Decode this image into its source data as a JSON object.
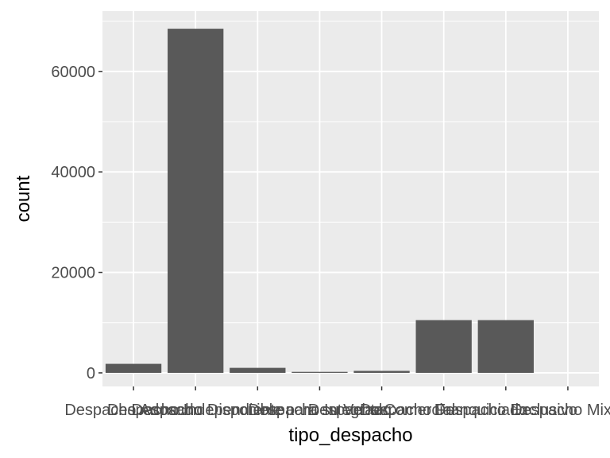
{
  "chart_data": {
    "type": "bar",
    "xlabel": "tipo_despacho",
    "ylabel": "count",
    "grid": true,
    "legend": "none",
    "categories": [
      "Despacho Adosado",
      "Despacho Independiente",
      "Despacho Disponible para su Venta",
      "Despacho Integrado",
      "Despacho Comercial",
      "Despacho Franquiciado",
      "Despacho Exclusivo",
      "Despacho Mixto"
    ],
    "values": [
      1800,
      68500,
      1000,
      200,
      400,
      10500,
      10500,
      0
    ],
    "yticks": [
      0,
      20000,
      40000,
      60000
    ],
    "ytick_labels": [
      "0",
      "20000",
      "40000",
      "60000"
    ],
    "ylim": [
      -2700,
      72000
    ],
    "colors": {
      "panel": "#ebebeb",
      "grid": "#ffffff",
      "bar": "#595959",
      "tick": "#333333"
    }
  }
}
